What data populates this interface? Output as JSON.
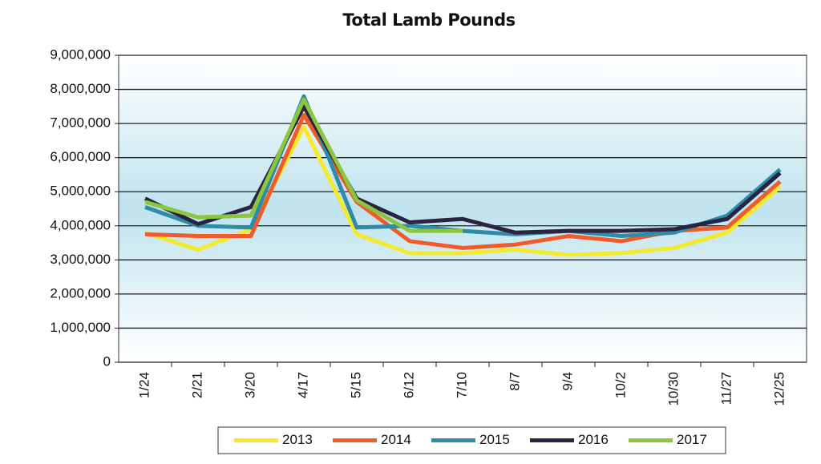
{
  "chart_data": {
    "type": "line",
    "title": "Total Lamb Pounds",
    "categories": [
      "1/24",
      "2/21",
      "3/20",
      "4/17",
      "5/15",
      "6/12",
      "7/10",
      "8/7",
      "9/4",
      "10/2",
      "10/30",
      "11/27",
      "12/25"
    ],
    "series": [
      {
        "name": "2013",
        "color": "#f3ea2c",
        "values": [
          3800000,
          3300000,
          3900000,
          6900000,
          3750000,
          3200000,
          3200000,
          3300000,
          3150000,
          3200000,
          3350000,
          3800000,
          5150000
        ]
      },
      {
        "name": "2014",
        "color": "#f15a29",
        "values": [
          3750000,
          3700000,
          3700000,
          7250000,
          4700000,
          3550000,
          3350000,
          3450000,
          3700000,
          3550000,
          3850000,
          3950000,
          5300000
        ]
      },
      {
        "name": "2015",
        "color": "#2e8ca8",
        "values": [
          4550000,
          4000000,
          3950000,
          7800000,
          3950000,
          4000000,
          3850000,
          3750000,
          3850000,
          3700000,
          3800000,
          4300000,
          5650000
        ]
      },
      {
        "name": "2016",
        "color": "#2a2440",
        "values": [
          4800000,
          4050000,
          4550000,
          7500000,
          4800000,
          4100000,
          4200000,
          3800000,
          3850000,
          3850000,
          3900000,
          4200000,
          5550000
        ]
      },
      {
        "name": "2017",
        "color": "#8cc63f",
        "values": [
          4700000,
          4250000,
          4300000,
          7700000,
          4750000,
          3850000,
          3850000,
          null,
          null,
          null,
          null,
          null,
          null
        ]
      }
    ],
    "ylim": [
      0,
      9000000
    ],
    "yticks": [
      0,
      {
        "value": 1000000,
        "label": "1,000,000"
      },
      {
        "value": 2000000,
        "label": "2,000,000"
      },
      {
        "value": 3000000,
        "label": "3,000,000"
      },
      {
        "value": 4000000,
        "label": "4,000,000"
      },
      {
        "value": 5000000,
        "label": "5,000,000"
      },
      {
        "value": 6000000,
        "label": "6,000,000"
      },
      {
        "value": 7000000,
        "label": "7,000,000"
      },
      {
        "value": 8000000,
        "label": "8,000,000"
      },
      {
        "value": 9000000,
        "label": "9,000,000"
      }
    ],
    "grid": true,
    "legend": "bottom"
  }
}
